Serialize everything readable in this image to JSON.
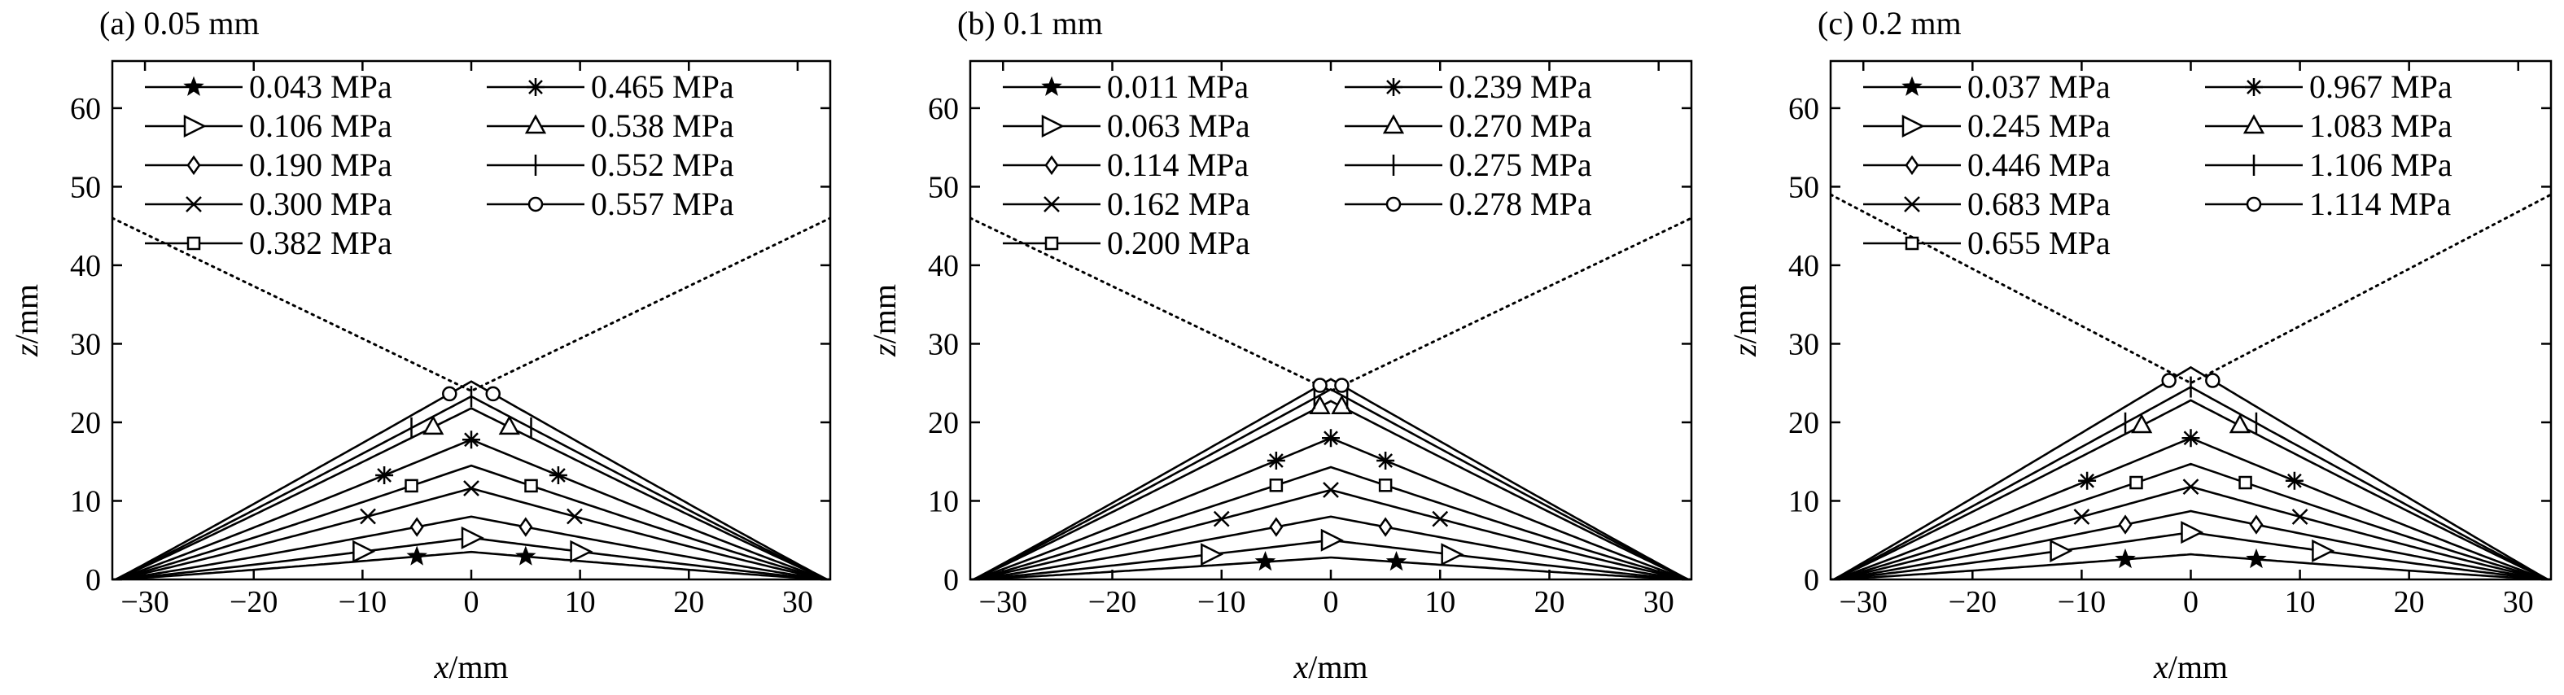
{
  "chart_data": [
    {
      "type": "line",
      "title": "(a) 0.05 mm",
      "xlabel_var": "x",
      "xlabel_unit": "/mm",
      "ylabel_var": "z",
      "ylabel_unit": "/mm",
      "xlim": [
        -33,
        33
      ],
      "ylim": [
        0,
        66
      ],
      "xticks": [
        -30,
        -20,
        -10,
        0,
        10,
        20,
        30
      ],
      "yticks": [
        0,
        10,
        20,
        30,
        40,
        50,
        60
      ],
      "legend_position": "top",
      "reference_line": {
        "style": "dotted",
        "x": [
          -33,
          0,
          33
        ],
        "y": [
          46,
          24,
          46
        ]
      },
      "series": [
        {
          "name": "0.043 MPa",
          "marker": "star",
          "peak": 3.5,
          "marker_x": [
            -5,
            5
          ]
        },
        {
          "name": "0.106 MPa",
          "marker": "triangle-right",
          "peak": 5.3,
          "marker_x": [
            -10,
            0,
            10
          ]
        },
        {
          "name": "0.190 MPa",
          "marker": "diamond",
          "peak": 8.0,
          "marker_x": [
            -5,
            5
          ]
        },
        {
          "name": "0.300 MPa",
          "marker": "x",
          "peak": 11.6,
          "marker_x": [
            -9.5,
            0,
            9.5
          ]
        },
        {
          "name": "0.382 MPa",
          "marker": "square",
          "peak": 14.5,
          "marker_x": [
            -5.5,
            5.5
          ]
        },
        {
          "name": "0.465 MPa",
          "marker": "asterisk",
          "peak": 17.8,
          "marker_x": [
            -8,
            0,
            8
          ]
        },
        {
          "name": "0.538 MPa",
          "marker": "triangle-up",
          "peak": 21.8,
          "marker_x": [
            -3.5,
            3.5
          ]
        },
        {
          "name": "0.552 MPa",
          "marker": "plus",
          "peak": 23.3,
          "marker_x": [
            -5.5,
            0,
            5.5
          ]
        },
        {
          "name": "0.557 MPa",
          "marker": "circle",
          "peak": 25.2,
          "marker_x": [
            -2,
            2
          ]
        }
      ]
    },
    {
      "type": "line",
      "title": "(b) 0.1 mm",
      "xlabel_var": "x",
      "xlabel_unit": "/mm",
      "ylabel_var": "z",
      "ylabel_unit": "/mm",
      "xlim": [
        -33,
        33
      ],
      "ylim": [
        0,
        66
      ],
      "xticks": [
        -30,
        -20,
        -10,
        0,
        10,
        20,
        30
      ],
      "yticks": [
        0,
        10,
        20,
        30,
        40,
        50,
        60
      ],
      "legend_position": "top",
      "reference_line": {
        "style": "dotted",
        "x": [
          -33,
          0,
          33
        ],
        "y": [
          46,
          24,
          46
        ]
      },
      "series": [
        {
          "name": "0.011 MPa",
          "marker": "star",
          "peak": 2.8,
          "marker_x": [
            -6,
            6
          ]
        },
        {
          "name": "0.063 MPa",
          "marker": "triangle-right",
          "peak": 5.0,
          "marker_x": [
            -11,
            0,
            11
          ]
        },
        {
          "name": "0.114 MPa",
          "marker": "diamond",
          "peak": 8.0,
          "marker_x": [
            -5,
            5
          ]
        },
        {
          "name": "0.162 MPa",
          "marker": "x",
          "peak": 11.4,
          "marker_x": [
            -10,
            0,
            10
          ]
        },
        {
          "name": "0.200 MPa",
          "marker": "square",
          "peak": 14.3,
          "marker_x": [
            -5,
            5
          ]
        },
        {
          "name": "0.239 MPa",
          "marker": "asterisk",
          "peak": 18.0,
          "marker_x": [
            -5,
            0,
            5
          ]
        },
        {
          "name": "0.270 MPa",
          "marker": "triangle-up",
          "peak": 22.7,
          "marker_x": [
            -1,
            1
          ]
        },
        {
          "name": "0.275 MPa",
          "marker": "plus",
          "peak": 24.2,
          "marker_x": [
            -1.5,
            1.5
          ]
        },
        {
          "name": "0.278 MPa",
          "marker": "circle",
          "peak": 25.5,
          "marker_x": [
            -1,
            1
          ]
        }
      ]
    },
    {
      "type": "line",
      "title": "(c) 0.2 mm",
      "xlabel_var": "x",
      "xlabel_unit": "/mm",
      "ylabel_var": "z",
      "ylabel_unit": "/mm",
      "xlim": [
        -33,
        33
      ],
      "ylim": [
        0,
        66
      ],
      "xticks": [
        -30,
        -20,
        -10,
        0,
        10,
        20,
        30
      ],
      "yticks": [
        0,
        10,
        20,
        30,
        40,
        50,
        60
      ],
      "legend_position": "top",
      "reference_line": {
        "style": "dotted",
        "x": [
          -33,
          0,
          33
        ],
        "y": [
          49,
          25,
          49
        ]
      },
      "series": [
        {
          "name": "0.037 MPa",
          "marker": "star",
          "peak": 3.2,
          "marker_x": [
            -6,
            6
          ]
        },
        {
          "name": "0.245 MPa",
          "marker": "triangle-right",
          "peak": 6.0,
          "marker_x": [
            -12,
            0,
            12
          ]
        },
        {
          "name": "0.446 MPa",
          "marker": "diamond",
          "peak": 8.7,
          "marker_x": [
            -6,
            6
          ]
        },
        {
          "name": "0.683 MPa",
          "marker": "x",
          "peak": 11.8,
          "marker_x": [
            -10,
            0,
            10
          ]
        },
        {
          "name": "0.655 MPa",
          "marker": "square",
          "peak": 14.7,
          "marker_x": [
            -5,
            5
          ]
        },
        {
          "name": "0.967 MPa",
          "marker": "asterisk",
          "peak": 18.0,
          "marker_x": [
            -9.5,
            0,
            9.5
          ]
        },
        {
          "name": "1.083 MPa",
          "marker": "triangle-up",
          "peak": 22.8,
          "marker_x": [
            -4.5,
            4.5
          ]
        },
        {
          "name": "1.106 MPa",
          "marker": "plus",
          "peak": 24.5,
          "marker_x": [
            -6,
            0,
            6
          ]
        },
        {
          "name": "1.114 MPa",
          "marker": "circle",
          "peak": 27.0,
          "marker_x": [
            -2,
            2
          ]
        }
      ]
    }
  ]
}
